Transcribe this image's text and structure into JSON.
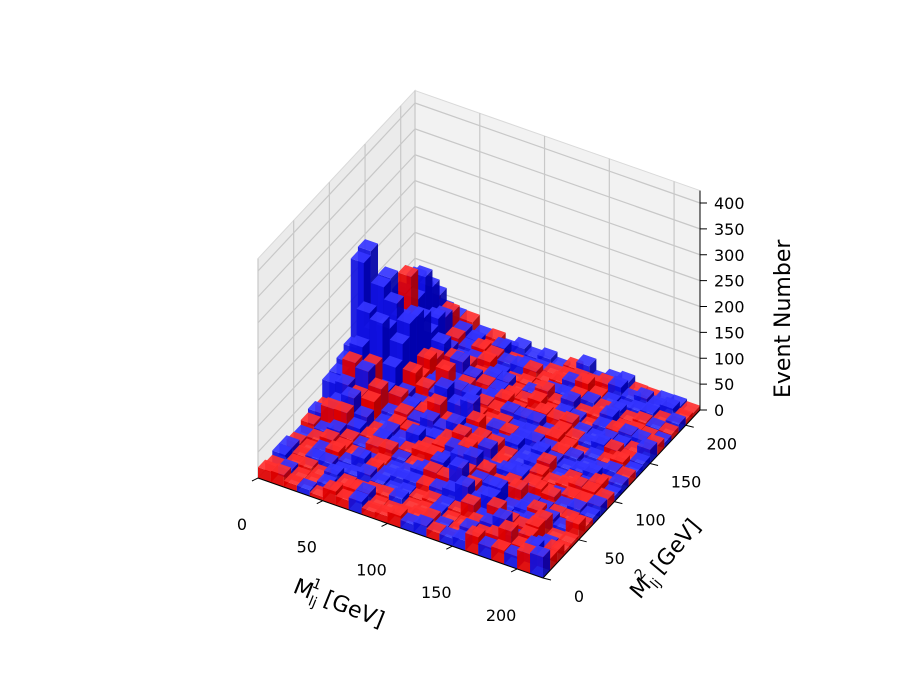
{
  "chart_data": {
    "type": "bar3d",
    "title": "",
    "xlabel": {
      "base": "M",
      "sub": "lj",
      "sup": "1",
      "unit": "[GeV]"
    },
    "ylabel": {
      "base": "M",
      "sub": "lj",
      "sup": "2",
      "unit": "[GeV]"
    },
    "zlabel": "Event Number",
    "xticks": [
      "0",
      "50",
      "100",
      "150",
      "200"
    ],
    "yticks": [
      "0",
      "50",
      "100",
      "150",
      "200"
    ],
    "zticks": [
      "0",
      "50",
      "100",
      "150",
      "200",
      "250",
      "300",
      "350",
      "400"
    ],
    "xlim": [
      0,
      220
    ],
    "ylim": [
      0,
      220
    ],
    "zlim": [
      0,
      400
    ],
    "grid": true,
    "bin_width_gev": 10,
    "series": [
      {
        "name": "",
        "color": "#ff0000"
      },
      {
        "name": "",
        "color": "#1010ff"
      }
    ],
    "dominant_features": [
      {
        "x": 5,
        "y": 135,
        "z": 280,
        "note": "narrow spike near back corner"
      },
      {
        "x": 25,
        "y": 150,
        "z": 160,
        "note": "broad blue ridge along back wall"
      }
    ]
  }
}
